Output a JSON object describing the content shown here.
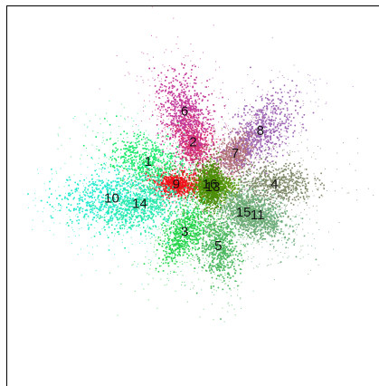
{
  "chart_data": {
    "type": "scatter",
    "title": "",
    "xlabel": "",
    "ylabel": "",
    "grid": false,
    "legend": "none",
    "clusters": [
      {
        "label": "1",
        "color": "#19e86c",
        "x": -2.2,
        "y": 0.9,
        "spread": 1.0
      },
      {
        "label": "2",
        "color": "#d42a6e",
        "x": -0.6,
        "y": 1.6,
        "spread": 0.7
      },
      {
        "label": "3",
        "color": "#22d44a",
        "x": -0.9,
        "y": -1.6,
        "spread": 0.8
      },
      {
        "label": "4",
        "color": "#7f8a6a",
        "x": 2.3,
        "y": 0.1,
        "spread": 0.9
      },
      {
        "label": "5",
        "color": "#4cb860",
        "x": 0.3,
        "y": -2.1,
        "spread": 0.8
      },
      {
        "label": "6",
        "color": "#c2399a",
        "x": -0.9,
        "y": 2.7,
        "spread": 1.0
      },
      {
        "label": "7",
        "color": "#b0707a",
        "x": 0.9,
        "y": 1.2,
        "spread": 0.6
      },
      {
        "label": "8",
        "color": "#9e66b4",
        "x": 1.8,
        "y": 2.0,
        "spread": 1.0
      },
      {
        "label": "9",
        "color": "#f0101a",
        "x": -1.2,
        "y": 0.1,
        "spread": 0.5
      },
      {
        "label": "10",
        "color": "#22ead0",
        "x": -3.5,
        "y": -0.4,
        "spread": 1.2
      },
      {
        "label": "11",
        "color": "#6fae7e",
        "x": 1.7,
        "y": -1.0,
        "spread": 0.8
      },
      {
        "label": "13",
        "color": "#5a9a0a",
        "x": 0.1,
        "y": 0.0,
        "spread": 0.5
      },
      {
        "label": "14",
        "color": "#26e8a8",
        "x": -2.5,
        "y": -0.6,
        "spread": 1.0
      },
      {
        "label": "15",
        "color": "#6cab74",
        "x": 1.2,
        "y": -0.9,
        "spread": 0.7
      },
      {
        "label": "16",
        "color": "#4a8c06",
        "x": 0.0,
        "y": 0.1,
        "spread": 0.5
      }
    ]
  }
}
